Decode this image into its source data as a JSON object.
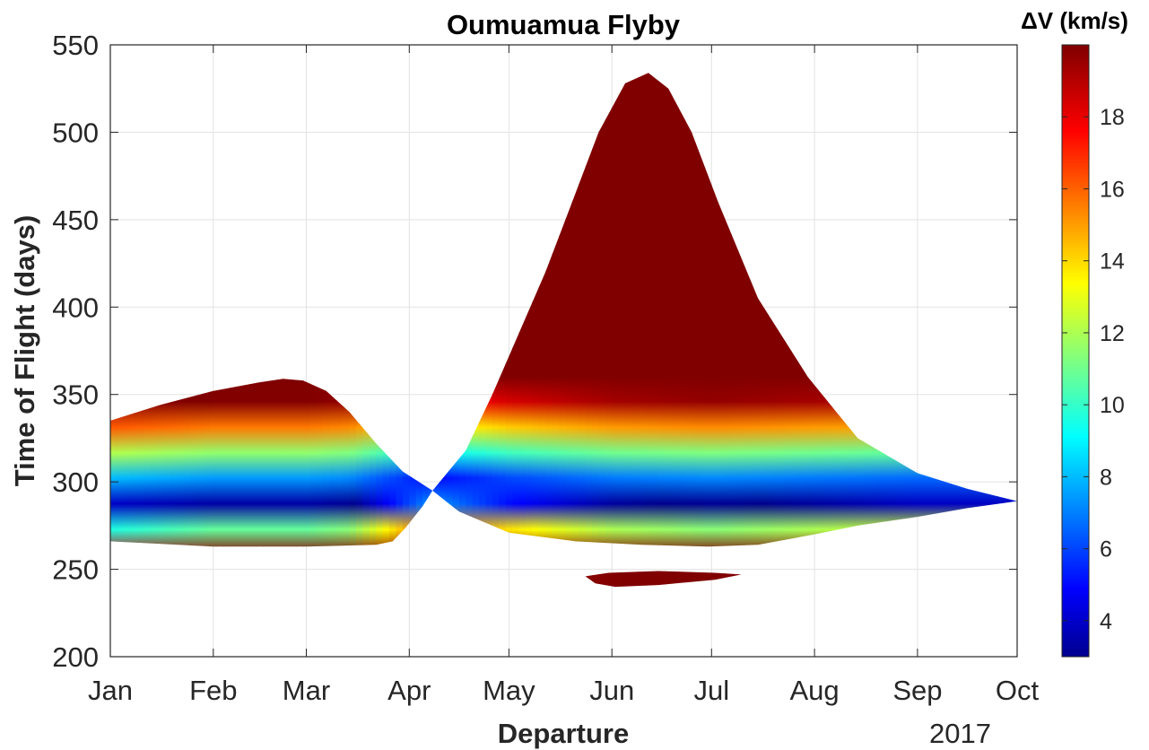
{
  "chart_data": {
    "type": "heatmap",
    "title": "Oumuamua Flyby",
    "xlabel": "Departure",
    "ylabel": "Time of Flight (days)",
    "year_label": "2017",
    "x_ticks": [
      "Jan",
      "Feb",
      "Mar",
      "Apr",
      "May",
      "Jun",
      "Jul",
      "Aug",
      "Sep",
      "Oct"
    ],
    "x_tick_days": [
      0,
      31,
      59,
      90,
      120,
      151,
      181,
      212,
      243,
      273
    ],
    "xlim_days": [
      0,
      273
    ],
    "y_ticks": [
      "200",
      "250",
      "300",
      "350",
      "400",
      "450",
      "500",
      "550"
    ],
    "ylim": [
      200,
      550
    ],
    "grid": true,
    "colorbar": {
      "title": "ΔV (km/s)",
      "ticks": [
        "4",
        "6",
        "8",
        "10",
        "12",
        "14",
        "16",
        "18"
      ],
      "range": [
        3,
        20
      ],
      "colormap": "jet"
    },
    "regions": [
      {
        "name": "",
        "outline_day_tof": [
          [
            0,
            335
          ],
          [
            15,
            344
          ],
          [
            31,
            352
          ],
          [
            45,
            357
          ],
          [
            52,
            359
          ],
          [
            58,
            358
          ],
          [
            65,
            352
          ],
          [
            72,
            340
          ],
          [
            80,
            322
          ],
          [
            88,
            306
          ],
          [
            97,
            295
          ],
          [
            94,
            286
          ],
          [
            89,
            274
          ],
          [
            85,
            266
          ],
          [
            80,
            264
          ],
          [
            59,
            263
          ],
          [
            31,
            263
          ],
          [
            10,
            265
          ],
          [
            0,
            266
          ]
        ],
        "min_tof_curve": [
          [
            0,
            284
          ],
          [
            31,
            286
          ],
          [
            59,
            286
          ],
          [
            72,
            287
          ],
          [
            85,
            291
          ],
          [
            97,
            295
          ]
        ],
        "min_dv": 3.2
      },
      {
        "name": "",
        "outline_day_tof": [
          [
            97,
            295
          ],
          [
            107,
            318
          ],
          [
            115,
            350
          ],
          [
            123,
            385
          ],
          [
            131,
            420
          ],
          [
            139,
            460
          ],
          [
            147,
            500
          ],
          [
            155,
            528
          ],
          [
            162,
            534
          ],
          [
            168,
            525
          ],
          [
            175,
            500
          ],
          [
            183,
            460
          ],
          [
            195,
            405
          ],
          [
            210,
            360
          ],
          [
            225,
            325
          ],
          [
            243,
            305
          ],
          [
            258,
            296
          ],
          [
            273,
            289
          ],
          [
            258,
            285
          ],
          [
            243,
            280
          ],
          [
            225,
            275
          ],
          [
            212,
            270
          ],
          [
            195,
            264
          ],
          [
            180,
            263
          ],
          [
            160,
            264
          ],
          [
            140,
            266
          ],
          [
            120,
            271
          ],
          [
            105,
            283
          ]
        ],
        "min_tof_curve": [
          [
            97,
            295
          ],
          [
            120,
            291
          ],
          [
            151,
            288
          ],
          [
            181,
            287
          ],
          [
            212,
            288
          ],
          [
            243,
            289
          ],
          [
            273,
            289
          ]
        ],
        "min_dv": 3.2
      },
      {
        "name": "",
        "outline_day_tof": [
          [
            143,
            246
          ],
          [
            150,
            248
          ],
          [
            165,
            249
          ],
          [
            182,
            248
          ],
          [
            190,
            247
          ],
          [
            182,
            244
          ],
          [
            165,
            241
          ],
          [
            152,
            240
          ],
          [
            146,
            242
          ]
        ],
        "min_tof_curve": [
          [
            143,
            246
          ],
          [
            190,
            247
          ]
        ],
        "min_dv": 18.5
      }
    ]
  }
}
